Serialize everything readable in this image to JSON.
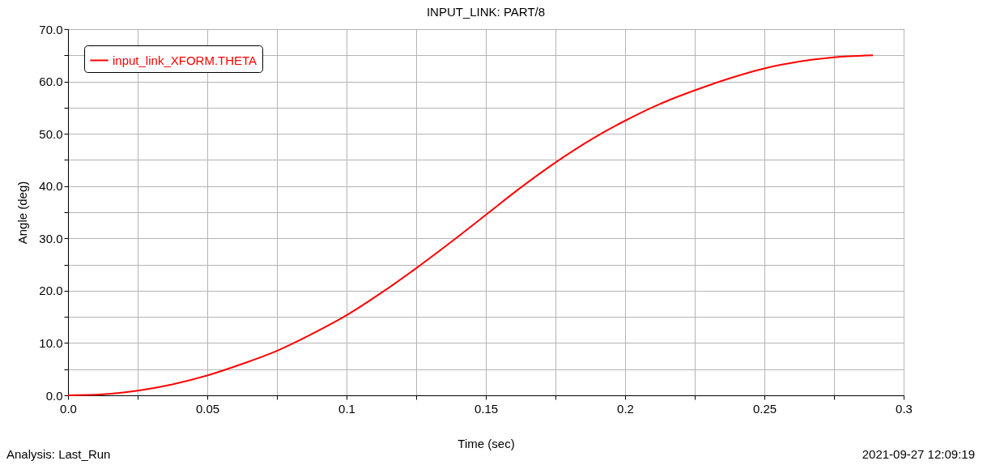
{
  "chart_data": {
    "type": "line",
    "title": "INPUT_LINK: PART/8",
    "xlabel": "Time (sec)",
    "ylabel": "Angle (deg)",
    "annotations": [
      "Analysis:  Last_Run",
      "2021-09-27 12:09:19"
    ],
    "x": [
      0,
      0.0125,
      0.025,
      0.0375,
      0.05,
      0.0625,
      0.075,
      0.0875,
      0.1,
      0.1125,
      0.125,
      0.1375,
      0.15,
      0.1625,
      0.175,
      0.1875,
      0.2,
      0.2125,
      0.225,
      0.2375,
      0.25,
      0.2625,
      0.275,
      0.28,
      0.289
    ],
    "series": [
      {
        "name": "input_link_XFORM.THETA",
        "color": "#ff0000",
        "values": [
          0,
          0.2,
          0.9,
          2.1,
          3.8,
          6.0,
          8.5,
          11.7,
          15.3,
          19.6,
          24.3,
          29.3,
          34.5,
          39.7,
          44.5,
          48.8,
          52.5,
          55.7,
          58.3,
          60.6,
          62.5,
          63.8,
          64.6,
          64.8,
          65.0
        ]
      }
    ],
    "xlim": [
      0,
      0.3
    ],
    "ylim": [
      0,
      70
    ],
    "xticks": [
      {
        "value": 0,
        "label": "0.0"
      },
      {
        "value": 0.025,
        "label": null
      },
      0.05,
      {
        "value": 0.075,
        "label": null
      },
      0.1,
      {
        "value": 0.125,
        "label": null
      },
      0.15,
      {
        "value": 0.175,
        "label": null
      },
      0.2,
      {
        "value": 0.225,
        "label": null
      },
      0.25,
      {
        "value": 0.275,
        "label": null
      },
      0.3
    ],
    "yticks": [
      {
        "value": 0,
        "label": "0.0"
      },
      {
        "value": 5,
        "label": null
      },
      {
        "value": 10,
        "label": "10.0"
      },
      {
        "value": 15,
        "label": null
      },
      {
        "value": 20,
        "label": "20.0"
      },
      {
        "value": 25,
        "label": null
      },
      {
        "value": 30,
        "label": "30.0"
      },
      {
        "value": 35,
        "label": null
      },
      {
        "value": 40,
        "label": "40.0"
      },
      {
        "value": 45,
        "label": null
      },
      {
        "value": 50,
        "label": "50.0"
      },
      {
        "value": 55,
        "label": null
      },
      {
        "value": 60,
        "label": "60.0"
      },
      {
        "value": 65,
        "label": null
      },
      {
        "value": 70,
        "label": "70.0"
      }
    ],
    "grid": true,
    "legend": "top left",
    "marker": "none",
    "line_style": "solid"
  }
}
